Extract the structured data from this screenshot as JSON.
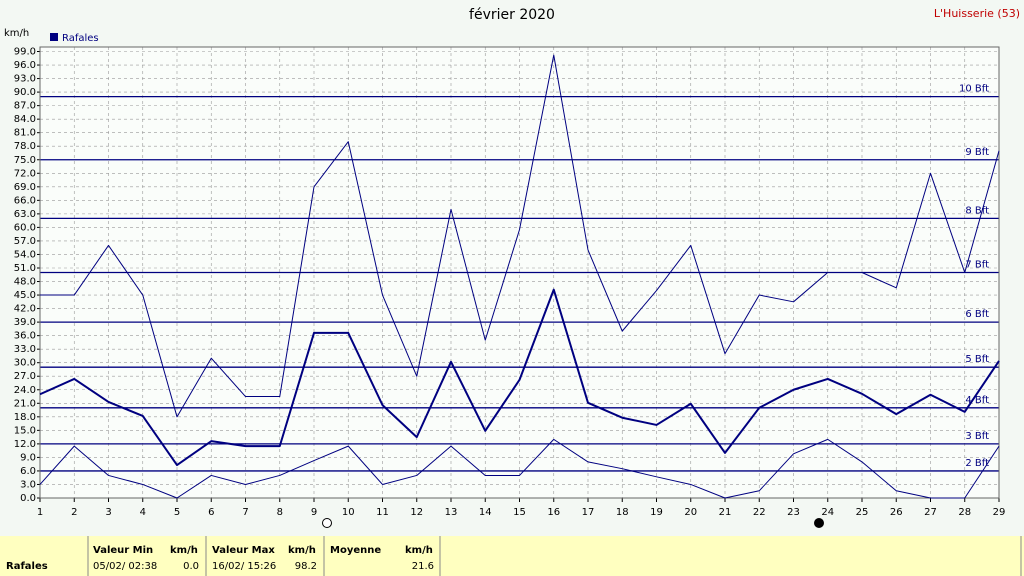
{
  "chart_data": {
    "type": "line",
    "title": "février 2020",
    "station": "L'Huisserie (53)",
    "y_label": "km/h",
    "legend_label": "Rafales",
    "legend_color": "#000080",
    "x": [
      1,
      2,
      3,
      4,
      5,
      6,
      7,
      8,
      9,
      10,
      11,
      12,
      13,
      14,
      15,
      16,
      17,
      18,
      19,
      20,
      21,
      22,
      23,
      24,
      25,
      26,
      27,
      28,
      29
    ],
    "xlim": [
      1,
      29
    ],
    "xticks": [
      1,
      2,
      3,
      4,
      5,
      6,
      7,
      8,
      9,
      10,
      11,
      12,
      13,
      14,
      15,
      16,
      17,
      18,
      19,
      20,
      21,
      22,
      23,
      24,
      25,
      26,
      27,
      28,
      29
    ],
    "ylim": [
      0,
      100
    ],
    "yticks": [
      {
        "value": 0,
        "label": "0.0"
      },
      {
        "value": 3,
        "label": "3.0"
      },
      {
        "value": 6,
        "label": "6.0"
      },
      {
        "value": 9,
        "label": "9.0"
      },
      {
        "value": 12,
        "label": "12.0"
      },
      {
        "value": 15,
        "label": "15.0"
      },
      {
        "value": 18,
        "label": "18.0"
      },
      {
        "value": 21,
        "label": "21.0"
      },
      {
        "value": 24,
        "label": "24.0"
      },
      {
        "value": 27,
        "label": "27.0"
      },
      {
        "value": 30,
        "label": "30.0"
      },
      {
        "value": 33,
        "label": "33.0"
      },
      {
        "value": 36,
        "label": "36.0"
      },
      {
        "value": 39,
        "label": "39.0"
      },
      {
        "value": 42,
        "label": "42.0"
      },
      {
        "value": 45,
        "label": "45.0"
      },
      {
        "value": 48,
        "label": "48.0"
      },
      {
        "value": 51,
        "label": "51.0"
      },
      {
        "value": 54,
        "label": "54.0"
      },
      {
        "value": 57,
        "label": "57.0"
      },
      {
        "value": 60,
        "label": "60.0"
      },
      {
        "value": 63,
        "label": "63.0"
      },
      {
        "value": 66,
        "label": "66.0"
      },
      {
        "value": 69,
        "label": "69.0"
      },
      {
        "value": 72,
        "label": "72.0"
      },
      {
        "value": 75,
        "label": "75.0"
      },
      {
        "value": 78,
        "label": "78.0"
      },
      {
        "value": 81,
        "label": "81.0"
      },
      {
        "value": 84,
        "label": "84.0"
      },
      {
        "value": 87,
        "label": "87.0"
      },
      {
        "value": 90,
        "label": "90.0"
      },
      {
        "value": 93,
        "label": "93.0"
      },
      {
        "value": 96,
        "label": "96.0"
      },
      {
        "value": 99,
        "label": "99.0"
      }
    ],
    "grid": true,
    "reference_lines": [
      {
        "value": 6,
        "label": "2 Bft"
      },
      {
        "value": 12,
        "label": "3 Bft"
      },
      {
        "value": 20,
        "label": "4 Bft"
      },
      {
        "value": 29,
        "label": "5 Bft"
      },
      {
        "value": 39,
        "label": "6 Bft"
      },
      {
        "value": 50,
        "label": "7 Bft"
      },
      {
        "value": 62,
        "label": "8 Bft"
      },
      {
        "value": 75,
        "label": "9 Bft"
      },
      {
        "value": 89,
        "label": "10 Bft"
      }
    ],
    "reference_color": "#000080",
    "series": [
      {
        "color": "#000080",
        "width": 1,
        "values": [
          45,
          45,
          56,
          45,
          18,
          31,
          22.5,
          22.5,
          69,
          79,
          45,
          27,
          64,
          35,
          59.5,
          98.2,
          55,
          37,
          46,
          56,
          32,
          45,
          43.5,
          50,
          50,
          46.6,
          72,
          50,
          77
        ]
      },
      {
        "color": "#000080",
        "width": 2,
        "values": [
          23,
          26.4,
          21.3,
          18.2,
          7.3,
          12.6,
          11.5,
          11.5,
          36.6,
          36.6,
          20.6,
          13.5,
          30.2,
          14.9,
          26.2,
          46.2,
          21.1,
          17.8,
          16.2,
          20.9,
          10,
          20,
          24,
          26.4,
          23.1,
          18.6,
          22.9,
          19.1,
          30.4
        ]
      },
      {
        "color": "#000080",
        "width": 1,
        "values": [
          3,
          11.5,
          5,
          3,
          0,
          5,
          3,
          5,
          8.3,
          11.5,
          3,
          5,
          11.5,
          5,
          5,
          13,
          8,
          6.5,
          4.7,
          3,
          0,
          1.6,
          9.8,
          13,
          8,
          1.6,
          0,
          0,
          11.5
        ]
      }
    ]
  },
  "summary": {
    "row_label": "Rafales",
    "min": {
      "title": "Valeur Min",
      "unit": "km/h",
      "date": "05/02/ 02:38",
      "value": "0.0"
    },
    "max": {
      "title": "Valeur Max",
      "unit": "km/h",
      "date": "16/02/ 15:26",
      "value": "98.2"
    },
    "mean": {
      "title": "Moyenne",
      "unit": "km/h",
      "value": "21.6"
    }
  }
}
